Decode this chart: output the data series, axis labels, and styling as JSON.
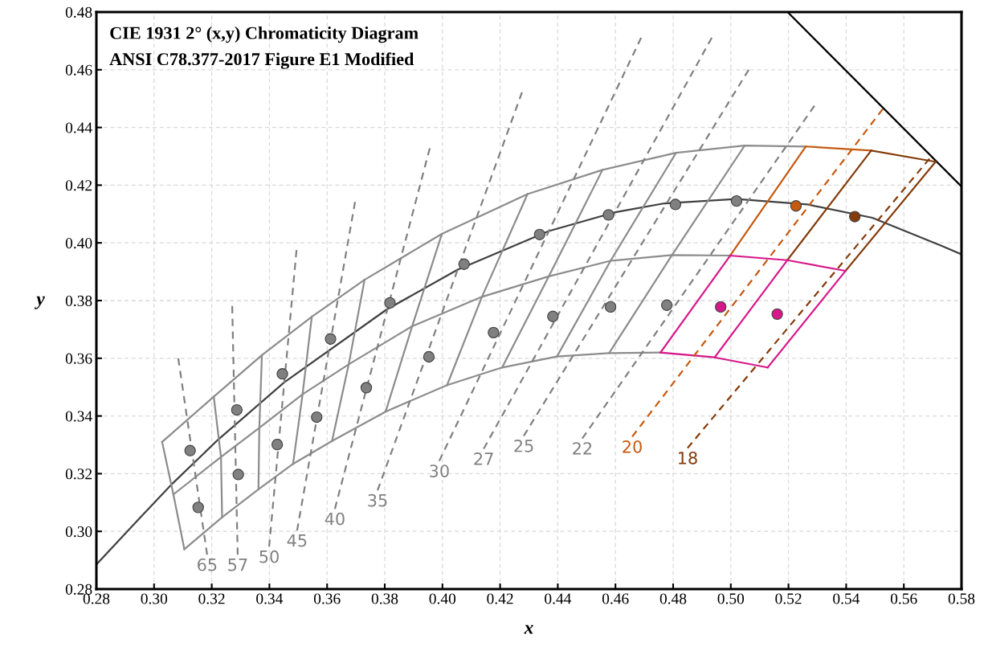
{
  "chart_data": {
    "type": "line",
    "xlabel": "x",
    "ylabel": "y",
    "annotations": [
      "CIE 1931 2° (x,y) Chromaticity Diagram",
      "ANSI C78.377-2017 Figure E1 Modified"
    ],
    "xlim": [
      0.28,
      0.58
    ],
    "ylim": [
      0.28,
      0.48
    ],
    "xticks": [
      0.28,
      {
        "value": 0.3,
        "label": "0.30"
      },
      0.32,
      0.34,
      0.36,
      0.38,
      {
        "value": 0.4,
        "label": "0.40"
      },
      0.42,
      0.44,
      0.46,
      0.48,
      {
        "value": 0.5,
        "label": "0.50"
      },
      0.52,
      0.54,
      0.56,
      0.58
    ],
    "yticks": [
      0.28,
      {
        "value": 0.3,
        "label": "0.30"
      },
      0.32,
      0.34,
      0.36,
      0.38,
      {
        "value": 0.4,
        "label": "0.40"
      },
      0.42,
      0.44,
      0.46,
      0.48
    ],
    "grid": true,
    "series": [
      {
        "color": "#404040",
        "line_style": "solid",
        "x": [
          0.28,
          0.2952,
          0.3064,
          0.3222,
          0.3451,
          0.3805,
          0.4053,
          0.4369,
          0.4599,
          0.477,
          0.5019,
          0.5266,
          0.5491,
          0.573,
          0.58
        ],
        "values": [
          0.2885,
          0.3048,
          0.3166,
          0.3318,
          0.3516,
          0.3768,
          0.3907,
          0.4041,
          0.4106,
          0.4137,
          0.4152,
          0.4133,
          0.4087,
          0.399,
          0.396
        ]
      },
      {
        "color": "#000000",
        "line_style": "solid",
        "x": [
          0.5197,
          0.58
        ],
        "values": [
          0.48,
          0.4195
        ]
      },
      {
        "color": "#8c8c8c",
        "line_style": "solid",
        "x": [
          0.3028,
          0.3207,
          0.3374,
          0.3547,
          0.373,
          0.3998,
          0.4295,
          0.4555,
          0.481,
          0.5048,
          0.526
        ],
        "values": [
          0.331,
          0.3467,
          0.3611,
          0.3744,
          0.3872,
          0.4031,
          0.4169,
          0.4253,
          0.4312,
          0.4337,
          0.4334
        ]
      },
      {
        "color": "#8c8c8c",
        "line_style": "solid",
        "x": [
          0.3067,
          0.3232,
          0.3365,
          0.3515,
          0.3675,
          0.3895,
          0.4137,
          0.4369,
          0.4583,
          0.4796,
          0.4998
        ],
        "values": [
          0.3128,
          0.3258,
          0.3359,
          0.3475,
          0.3579,
          0.3711,
          0.3813,
          0.3884,
          0.3938,
          0.3958,
          0.3956
        ]
      },
      {
        "color": "#8c8c8c",
        "line_style": "solid",
        "x": [
          0.3105,
          0.3236,
          0.3362,
          0.3482,
          0.3617,
          0.3803,
          0.4016,
          0.4207,
          0.4397,
          0.4578,
          0.4756
        ],
        "values": [
          0.2938,
          0.3049,
          0.3146,
          0.3234,
          0.3313,
          0.3415,
          0.3507,
          0.3568,
          0.3606,
          0.3618,
          0.362
        ]
      },
      {
        "color": "#8c8c8c",
        "line_style": "solid",
        "x": [
          0.3028,
          0.3067,
          0.3105
        ],
        "values": [
          0.331,
          0.3128,
          0.2938
        ]
      },
      {
        "color": "#8c8c8c",
        "line_style": "solid",
        "x": [
          0.3207,
          0.3232,
          0.3236
        ],
        "values": [
          0.3467,
          0.3258,
          0.3049
        ]
      },
      {
        "color": "#8c8c8c",
        "line_style": "solid",
        "x": [
          0.3374,
          0.3365,
          0.3362
        ],
        "values": [
          0.3611,
          0.3359,
          0.3146
        ]
      },
      {
        "color": "#8c8c8c",
        "line_style": "solid",
        "x": [
          0.3547,
          0.3515,
          0.3482
        ],
        "values": [
          0.3744,
          0.3475,
          0.3234
        ]
      },
      {
        "color": "#8c8c8c",
        "line_style": "solid",
        "x": [
          0.373,
          0.3675,
          0.3617
        ],
        "values": [
          0.3872,
          0.3579,
          0.3313
        ]
      },
      {
        "color": "#8c8c8c",
        "line_style": "solid",
        "x": [
          0.3998,
          0.3895,
          0.3803
        ],
        "values": [
          0.4031,
          0.3711,
          0.3415
        ]
      },
      {
        "color": "#8c8c8c",
        "line_style": "solid",
        "x": [
          0.4295,
          0.4137,
          0.4016
        ],
        "values": [
          0.4169,
          0.3813,
          0.3507
        ]
      },
      {
        "color": "#8c8c8c",
        "line_style": "solid",
        "x": [
          0.4555,
          0.4369,
          0.4207
        ],
        "values": [
          0.4253,
          0.3884,
          0.3568
        ]
      },
      {
        "color": "#8c8c8c",
        "line_style": "solid",
        "x": [
          0.481,
          0.4583,
          0.4397
        ],
        "values": [
          0.4312,
          0.3938,
          0.3606
        ]
      },
      {
        "color": "#8c8c8c",
        "line_style": "solid",
        "x": [
          0.5048,
          0.4796,
          0.4578
        ],
        "values": [
          0.4337,
          0.3958,
          0.3618
        ]
      },
      {
        "color": "#c55a11",
        "line_style": "solid",
        "x": [
          0.4998,
          0.526
        ],
        "values": [
          0.3956,
          0.4334
        ]
      },
      {
        "color": "#c55a11",
        "line_style": "solid",
        "x": [
          0.526,
          0.5487
        ],
        "values": [
          0.4334,
          0.432
        ]
      },
      {
        "color": "#843c0c",
        "line_style": "solid",
        "x": [
          0.5196,
          0.5487
        ],
        "values": [
          0.394,
          0.432
        ]
      },
      {
        "color": "#843c0c",
        "line_style": "solid",
        "x": [
          0.5487,
          0.571
        ],
        "values": [
          0.432,
          0.4281
        ]
      },
      {
        "color": "#843c0c",
        "line_style": "solid",
        "x": [
          0.5398,
          0.571
        ],
        "values": [
          0.3903,
          0.4281
        ]
      },
      {
        "color": "#d6198a",
        "line_style": "solid",
        "x": [
          0.4998,
          0.5196,
          0.5398
        ],
        "values": [
          0.3956,
          0.394,
          0.3903
        ]
      },
      {
        "color": "#d6198a",
        "line_style": "solid",
        "x": [
          0.4756,
          0.4944,
          0.5128
        ],
        "values": [
          0.362,
          0.3603,
          0.3568
        ]
      },
      {
        "color": "#d6198a",
        "line_style": "solid",
        "x": [
          0.4756,
          0.4998
        ],
        "values": [
          0.362,
          0.3956
        ]
      },
      {
        "color": "#d6198a",
        "line_style": "solid",
        "x": [
          0.4944,
          0.5196
        ],
        "values": [
          0.3603,
          0.394
        ]
      },
      {
        "color": "#d6198a",
        "line_style": "solid",
        "x": [
          0.5128,
          0.5398
        ],
        "values": [
          0.3568,
          0.3903
        ]
      },
      {
        "name": "65",
        "color": "#808080",
        "line_style": "dashed",
        "x": [
          0.3184,
          0.3084
        ],
        "values": [
          0.2919,
          0.36
        ]
      },
      {
        "name": "57",
        "color": "#808080",
        "line_style": "dashed",
        "x": [
          0.329,
          0.3271
        ],
        "values": [
          0.2919,
          0.3781
        ]
      },
      {
        "name": "50",
        "color": "#808080",
        "line_style": "dashed",
        "x": [
          0.3399,
          0.3494
        ],
        "values": [
          0.2947,
          0.3975
        ]
      },
      {
        "name": "45",
        "color": "#808080",
        "line_style": "dashed",
        "x": [
          0.3496,
          0.3697
        ],
        "values": [
          0.3003,
          0.4142
        ]
      },
      {
        "name": "40",
        "color": "#808080",
        "line_style": "dashed",
        "x": [
          0.3627,
          0.3956
        ],
        "values": [
          0.3078,
          0.4328
        ]
      },
      {
        "name": "35",
        "color": "#808080",
        "line_style": "dashed",
        "x": [
          0.3775,
          0.4276
        ],
        "values": [
          0.3142,
          0.4522
        ]
      },
      {
        "name": "30",
        "color": "#808080",
        "line_style": "dashed",
        "x": [
          0.3989,
          0.4689
        ],
        "values": [
          0.3244,
          0.4711
        ]
      },
      {
        "name": "27",
        "color": "#808080",
        "line_style": "dashed",
        "x": [
          0.4143,
          0.4934
        ],
        "values": [
          0.3286,
          0.4711
        ]
      },
      {
        "name": "25",
        "color": "#808080",
        "line_style": "dashed",
        "x": [
          0.4282,
          0.5062
        ],
        "values": [
          0.3331,
          0.46
        ]
      },
      {
        "name": "22",
        "color": "#808080",
        "line_style": "dashed",
        "x": [
          0.4485,
          0.529
        ],
        "values": [
          0.3322,
          0.4475
        ]
      },
      {
        "name": "20",
        "color": "#c55a11",
        "line_style": "dashed",
        "x": [
          0.4658,
          0.5527
        ],
        "values": [
          0.3328,
          0.4464
        ]
      },
      {
        "name": "18",
        "color": "#843c0c",
        "line_style": "dashed",
        "x": [
          0.485,
          0.5689
        ],
        "values": [
          0.3289,
          0.4292
        ]
      },
      {
        "type": "scatter",
        "color": "#808080",
        "marker": "circle",
        "x": [
          0.3125,
          0.3287,
          0.3445,
          0.3612,
          0.3818,
          0.4075,
          0.4337,
          0.4576,
          0.4808,
          0.502,
          0.3153,
          0.3292,
          0.3427,
          0.3564,
          0.3736,
          0.3953,
          0.4177,
          0.4383,
          0.4583,
          0.4778
        ],
        "values": [
          0.328,
          0.3421,
          0.3546,
          0.3667,
          0.3792,
          0.3926,
          0.4029,
          0.4097,
          0.4133,
          0.4145,
          0.3083,
          0.3197,
          0.3301,
          0.3396,
          0.3498,
          0.3605,
          0.3689,
          0.3745,
          0.3778,
          0.3784
        ]
      },
      {
        "type": "scatter",
        "color": "#c55a11",
        "marker": "circle",
        "x": [
          0.5226
        ],
        "values": [
          0.4128
        ]
      },
      {
        "type": "scatter",
        "color": "#843c0c",
        "marker": "circle",
        "x": [
          0.543
        ],
        "values": [
          0.4091
        ]
      },
      {
        "type": "scatter",
        "color": "#d6198a",
        "marker": "circle",
        "x": [
          0.4965,
          0.5161
        ],
        "values": [
          0.3778,
          0.3753
        ]
      }
    ]
  }
}
